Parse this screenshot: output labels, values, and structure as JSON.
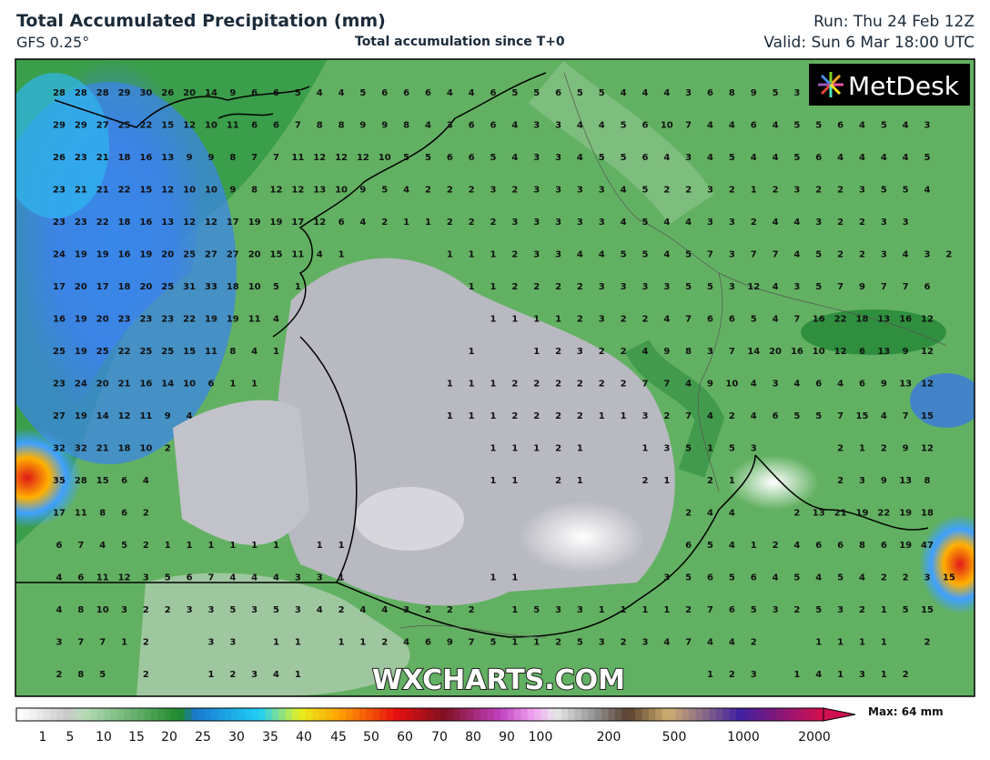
{
  "header": {
    "title": "Total Accumulated Precipitation (mm)",
    "model": "GFS 0.25°",
    "subtitle": "Total accumulation since T+0",
    "run": "Run: Thu 24 Feb 12Z",
    "valid": "Valid: Sun 6 Mar 18:00 UTC"
  },
  "logo": "MetDesk",
  "watermark": "WXCHARTS.COM",
  "legend": {
    "labels": [
      "1",
      "5",
      "10",
      "15",
      "20",
      "25",
      "30",
      "35",
      "40",
      "45",
      "50",
      "60",
      "70",
      "80",
      "90",
      "100",
      "200",
      "500",
      "1000",
      "2000"
    ],
    "max": "Max: 64 mm"
  },
  "grid": {
    "rows": [
      [
        28,
        28,
        28,
        29,
        30,
        26,
        20,
        14,
        9,
        6,
        6,
        5,
        4,
        4,
        5,
        6,
        6,
        6,
        4,
        4,
        6,
        5,
        5,
        6,
        5,
        5,
        4,
        4,
        4,
        3,
        6,
        8,
        9,
        5,
        3,
        null,
        null,
        null,
        null,
        null,
        null,
        null
      ],
      [
        29,
        29,
        27,
        25,
        22,
        15,
        12,
        10,
        11,
        6,
        6,
        7,
        8,
        8,
        9,
        9,
        8,
        4,
        3,
        6,
        6,
        4,
        3,
        3,
        4,
        4,
        5,
        6,
        10,
        7,
        4,
        4,
        6,
        4,
        5,
        5,
        6,
        4,
        5,
        4,
        3,
        null
      ],
      [
        26,
        23,
        21,
        18,
        16,
        13,
        9,
        9,
        8,
        7,
        7,
        11,
        12,
        12,
        12,
        10,
        5,
        5,
        6,
        6,
        5,
        4,
        3,
        3,
        4,
        5,
        5,
        6,
        4,
        3,
        4,
        5,
        4,
        4,
        5,
        6,
        4,
        4,
        4,
        4,
        5,
        null
      ],
      [
        23,
        21,
        21,
        22,
        15,
        12,
        10,
        10,
        9,
        8,
        12,
        12,
        13,
        10,
        9,
        5,
        4,
        2,
        2,
        2,
        3,
        2,
        3,
        3,
        3,
        3,
        4,
        5,
        2,
        2,
        3,
        2,
        1,
        2,
        3,
        2,
        2,
        3,
        5,
        5,
        4,
        null
      ],
      [
        23,
        23,
        22,
        18,
        16,
        13,
        12,
        12,
        17,
        19,
        19,
        17,
        12,
        6,
        4,
        2,
        1,
        1,
        2,
        2,
        2,
        3,
        3,
        3,
        3,
        3,
        4,
        5,
        4,
        4,
        3,
        3,
        2,
        4,
        4,
        3,
        2,
        2,
        3,
        3,
        null,
        null
      ],
      [
        24,
        19,
        19,
        16,
        19,
        20,
        25,
        27,
        27,
        20,
        15,
        11,
        4,
        1,
        null,
        null,
        null,
        null,
        1,
        1,
        1,
        2,
        3,
        3,
        4,
        4,
        5,
        5,
        4,
        5,
        7,
        3,
        7,
        7,
        4,
        5,
        2,
        2,
        3,
        4,
        3,
        2
      ],
      [
        17,
        20,
        17,
        18,
        20,
        25,
        31,
        33,
        18,
        10,
        5,
        1,
        null,
        null,
        null,
        null,
        null,
        null,
        null,
        1,
        1,
        2,
        2,
        2,
        2,
        3,
        3,
        3,
        3,
        5,
        5,
        3,
        12,
        4,
        3,
        5,
        7,
        9,
        7,
        7,
        6,
        null
      ],
      [
        16,
        19,
        20,
        23,
        23,
        23,
        22,
        19,
        19,
        11,
        4,
        null,
        null,
        null,
        null,
        null,
        null,
        null,
        null,
        null,
        1,
        1,
        1,
        1,
        2,
        3,
        2,
        2,
        4,
        7,
        6,
        6,
        5,
        4,
        7,
        16,
        22,
        18,
        13,
        16,
        12,
        null
      ],
      [
        25,
        19,
        25,
        22,
        25,
        25,
        15,
        11,
        8,
        4,
        1,
        null,
        null,
        null,
        null,
        null,
        null,
        null,
        null,
        1,
        null,
        null,
        1,
        2,
        3,
        2,
        2,
        4,
        9,
        8,
        3,
        7,
        14,
        20,
        16,
        10,
        12,
        6,
        13,
        9,
        12,
        null
      ],
      [
        23,
        24,
        20,
        21,
        16,
        14,
        10,
        6,
        1,
        1,
        null,
        null,
        null,
        null,
        null,
        null,
        null,
        null,
        1,
        1,
        1,
        2,
        2,
        2,
        2,
        2,
        2,
        7,
        7,
        4,
        9,
        10,
        4,
        3,
        4,
        6,
        4,
        6,
        9,
        13,
        12,
        null
      ],
      [
        27,
        19,
        14,
        12,
        11,
        9,
        4,
        null,
        null,
        null,
        null,
        null,
        null,
        null,
        null,
        null,
        null,
        null,
        1,
        1,
        1,
        2,
        2,
        2,
        2,
        1,
        1,
        3,
        2,
        7,
        4,
        2,
        4,
        6,
        5,
        5,
        7,
        15,
        4,
        7,
        15,
        null
      ],
      [
        32,
        32,
        21,
        18,
        10,
        2,
        null,
        null,
        null,
        null,
        null,
        null,
        null,
        null,
        null,
        null,
        null,
        null,
        null,
        null,
        1,
        1,
        1,
        2,
        1,
        null,
        null,
        1,
        3,
        5,
        1,
        5,
        3,
        null,
        null,
        null,
        2,
        1,
        2,
        9,
        12,
        null
      ],
      [
        35,
        28,
        15,
        6,
        4,
        null,
        null,
        null,
        null,
        null,
        null,
        null,
        null,
        null,
        null,
        null,
        null,
        null,
        null,
        null,
        1,
        1,
        null,
        2,
        1,
        null,
        null,
        2,
        1,
        null,
        2,
        1,
        null,
        null,
        null,
        null,
        2,
        3,
        9,
        13,
        8,
        null
      ],
      [
        17,
        11,
        8,
        6,
        2,
        null,
        null,
        null,
        null,
        null,
        null,
        null,
        null,
        null,
        null,
        null,
        null,
        null,
        null,
        null,
        null,
        null,
        null,
        null,
        null,
        null,
        null,
        null,
        null,
        2,
        4,
        4,
        null,
        null,
        2,
        13,
        21,
        19,
        22,
        19,
        18,
        null
      ],
      [
        6,
        7,
        4,
        5,
        2,
        1,
        1,
        1,
        1,
        1,
        1,
        null,
        1,
        1,
        null,
        null,
        null,
        null,
        null,
        null,
        null,
        null,
        null,
        null,
        null,
        null,
        null,
        null,
        null,
        6,
        5,
        4,
        1,
        2,
        4,
        6,
        6,
        8,
        6,
        19,
        47,
        null
      ],
      [
        4,
        6,
        11,
        12,
        3,
        5,
        6,
        7,
        4,
        4,
        4,
        3,
        3,
        1,
        null,
        null,
        null,
        null,
        null,
        null,
        1,
        1,
        null,
        null,
        null,
        null,
        null,
        null,
        3,
        5,
        6,
        5,
        6,
        4,
        5,
        4,
        5,
        4,
        2,
        2,
        3,
        15
      ],
      [
        4,
        8,
        10,
        3,
        2,
        2,
        3,
        3,
        5,
        3,
        5,
        3,
        4,
        2,
        4,
        4,
        3,
        2,
        2,
        2,
        null,
        1,
        5,
        3,
        3,
        1,
        1,
        1,
        1,
        2,
        7,
        6,
        5,
        3,
        2,
        5,
        3,
        2,
        1,
        5,
        15,
        null
      ],
      [
        3,
        7,
        7,
        1,
        2,
        null,
        null,
        3,
        3,
        null,
        1,
        1,
        null,
        1,
        1,
        2,
        4,
        6,
        9,
        7,
        5,
        1,
        1,
        2,
        5,
        3,
        2,
        3,
        4,
        7,
        4,
        4,
        2,
        null,
        null,
        1,
        1,
        1,
        1,
        null,
        2,
        null
      ],
      [
        2,
        8,
        5,
        null,
        2,
        null,
        null,
        1,
        2,
        3,
        4,
        1,
        null,
        null,
        null,
        null,
        null,
        null,
        null,
        null,
        null,
        null,
        null,
        null,
        null,
        null,
        null,
        null,
        null,
        null,
        1,
        2,
        3,
        null,
        1,
        4,
        1,
        3,
        1,
        2,
        null,
        null
      ]
    ]
  }
}
